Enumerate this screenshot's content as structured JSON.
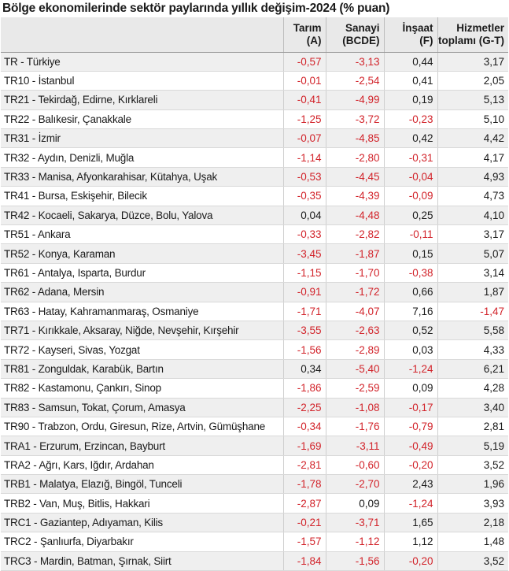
{
  "title": "Bölge ekonomilerinde sektör paylarında yıllık değişim-2024 (% puan)",
  "colors": {
    "negative": "#d2232a",
    "header_bg": "#e9e9e9",
    "stripe": "#efefef"
  },
  "header": {
    "region": "",
    "tarim": [
      "Tarım",
      "(A)"
    ],
    "sanayi": [
      "Sanayi",
      "(BCDE)"
    ],
    "insaat": [
      "İnşaat",
      "(F)"
    ],
    "hizmetler": [
      "Hizmetler",
      "toplamı (G-T)"
    ]
  },
  "rows": [
    {
      "region": "TR - Türkiye",
      "tarim": "-0,57",
      "sanayi": "-3,13",
      "insaat": "0,44",
      "hizmetler": "3,17"
    },
    {
      "region": "TR10 - İstanbul",
      "tarim": "-0,01",
      "sanayi": "-2,54",
      "insaat": "0,41",
      "hizmetler": "2,05"
    },
    {
      "region": "TR21 - Tekirdağ, Edirne, Kırklareli",
      "tarim": "-0,41",
      "sanayi": "-4,99",
      "insaat": "0,19",
      "hizmetler": "5,13"
    },
    {
      "region": "TR22 - Balıkesir, Çanakkale",
      "tarim": "-1,25",
      "sanayi": "-3,72",
      "insaat": "-0,23",
      "hizmetler": "5,10"
    },
    {
      "region": "TR31 - İzmir",
      "tarim": "-0,07",
      "sanayi": "-4,85",
      "insaat": "0,42",
      "hizmetler": "4,42"
    },
    {
      "region": "TR32 - Aydın, Denizli, Muğla",
      "tarim": "-1,14",
      "sanayi": "-2,80",
      "insaat": "-0,31",
      "hizmetler": "4,17"
    },
    {
      "region": "TR33 - Manisa, Afyonkarahisar, Kütahya, Uşak",
      "tarim": "-0,53",
      "sanayi": "-4,45",
      "insaat": "-0,04",
      "hizmetler": "4,93"
    },
    {
      "region": "TR41 - Bursa, Eskişehir, Bilecik",
      "tarim": "-0,35",
      "sanayi": "-4,39",
      "insaat": "-0,09",
      "hizmetler": "4,73"
    },
    {
      "region": "TR42 - Kocaeli, Sakarya, Düzce, Bolu, Yalova",
      "tarim": "0,04",
      "sanayi": "-4,48",
      "insaat": "0,25",
      "hizmetler": "4,10"
    },
    {
      "region": "TR51 - Ankara",
      "tarim": "-0,33",
      "sanayi": "-2,82",
      "insaat": "-0,11",
      "hizmetler": "3,17"
    },
    {
      "region": "TR52 - Konya, Karaman",
      "tarim": "-3,45",
      "sanayi": "-1,87",
      "insaat": "0,15",
      "hizmetler": "5,07"
    },
    {
      "region": "TR61 - Antalya, Isparta, Burdur",
      "tarim": "-1,15",
      "sanayi": "-1,70",
      "insaat": "-0,38",
      "hizmetler": "3,14"
    },
    {
      "region": "TR62 - Adana, Mersin",
      "tarim": "-0,91",
      "sanayi": "-1,72",
      "insaat": "0,66",
      "hizmetler": "1,87"
    },
    {
      "region": "TR63 - Hatay, Kahramanmaraş, Osmaniye",
      "tarim": "-1,71",
      "sanayi": "-4,07",
      "insaat": "7,16",
      "hizmetler": "-1,47"
    },
    {
      "region": "TR71 - Kırıkkale, Aksaray, Niğde, Nevşehir, Kırşehir",
      "tarim": "-3,55",
      "sanayi": "-2,63",
      "insaat": "0,52",
      "hizmetler": "5,58"
    },
    {
      "region": "TR72 - Kayseri, Sivas, Yozgat",
      "tarim": "-1,56",
      "sanayi": "-2,89",
      "insaat": "0,03",
      "hizmetler": "4,33"
    },
    {
      "region": "TR81 - Zonguldak, Karabük, Bartın",
      "tarim": "0,34",
      "sanayi": "-5,40",
      "insaat": "-1,24",
      "hizmetler": "6,21"
    },
    {
      "region": "TR82 - Kastamonu, Çankırı, Sinop",
      "tarim": "-1,86",
      "sanayi": "-2,59",
      "insaat": "0,09",
      "hizmetler": "4,28"
    },
    {
      "region": "TR83 - Samsun, Tokat, Çorum, Amasya",
      "tarim": "-2,25",
      "sanayi": "-1,08",
      "insaat": "-0,17",
      "hizmetler": "3,40"
    },
    {
      "region": "TR90 - Trabzon, Ordu, Giresun, Rize, Artvin, Gümüşhane",
      "tarim": "-0,34",
      "sanayi": "-1,76",
      "insaat": "-0,79",
      "hizmetler": "2,81"
    },
    {
      "region": "TRA1 - Erzurum, Erzincan, Bayburt",
      "tarim": "-1,69",
      "sanayi": "-3,11",
      "insaat": "-0,49",
      "hizmetler": "5,19"
    },
    {
      "region": "TRA2 - Ağrı, Kars, Iğdır, Ardahan",
      "tarim": "-2,81",
      "sanayi": "-0,60",
      "insaat": "-0,20",
      "hizmetler": "3,52"
    },
    {
      "region": "TRB1 - Malatya, Elazığ, Bingöl, Tunceli",
      "tarim": "-1,78",
      "sanayi": "-2,70",
      "insaat": "2,43",
      "hizmetler": "1,96"
    },
    {
      "region": "TRB2 - Van, Muş, Bitlis, Hakkari",
      "tarim": "-2,87",
      "sanayi": "0,09",
      "insaat": "-1,24",
      "hizmetler": "3,93"
    },
    {
      "region": "TRC1 - Gaziantep, Adıyaman, Kilis",
      "tarim": "-0,21",
      "sanayi": "-3,71",
      "insaat": "1,65",
      "hizmetler": "2,18"
    },
    {
      "region": "TRC2 - Şanlıurfa, Diyarbakır",
      "tarim": "-1,57",
      "sanayi": "-1,12",
      "insaat": "1,12",
      "hizmetler": "1,48"
    },
    {
      "region": "TRC3 - Mardin, Batman, Şırnak, Siirt",
      "tarim": "-1,84",
      "sanayi": "-1,56",
      "insaat": "-0,20",
      "hizmetler": "3,52"
    }
  ]
}
